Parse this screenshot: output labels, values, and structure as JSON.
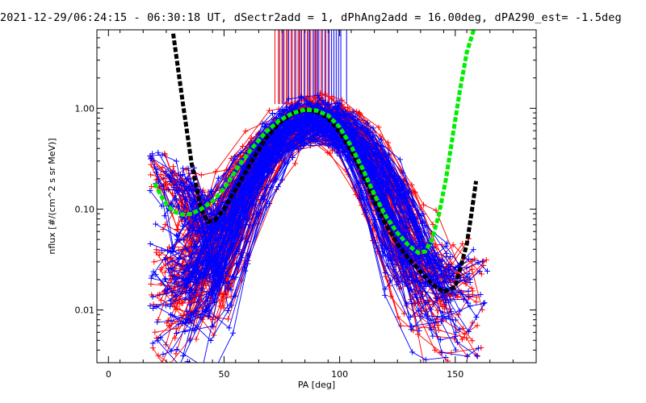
{
  "chart_data": {
    "type": "line",
    "title": "2021-12-29/06:24:15 - 06:30:18 UT, dSectr2add = 1, dPhAng2add = 16.00deg, dPA290_est=  -1.5deg",
    "xlabel": "PA [deg]",
    "ylabel": "nflux [#/(cm^2 s sr MeV)]",
    "xlim": [
      -5,
      185
    ],
    "ylim": [
      0.003,
      6.0
    ],
    "yscale": "log",
    "grid": false,
    "x_ticks": [
      0,
      50,
      100,
      150
    ],
    "y_ticks": [
      0.01,
      0.1,
      1.0
    ],
    "x_tick_labels": [
      "0",
      "50",
      "100",
      "150"
    ],
    "y_tick_labels": [
      "0.01",
      "0.10",
      "1.00"
    ],
    "colors": {
      "red": "#ff0000",
      "blue": "#0000ff",
      "black": "#000000",
      "green": "#00ee00",
      "purple": "#8b0a50"
    },
    "series": [
      {
        "style": "thick-dashed",
        "color": "#000000",
        "x": [
          28,
          32,
          36,
          40,
          43,
          46,
          50,
          56,
          62,
          68,
          74,
          80,
          85,
          90,
          95,
          100,
          105,
          110,
          115,
          120,
          125,
          130,
          135,
          140,
          145,
          150,
          152,
          155,
          157,
          159
        ],
        "y": [
          5.5,
          1.2,
          0.28,
          0.1,
          0.075,
          0.078,
          0.1,
          0.17,
          0.3,
          0.5,
          0.72,
          0.9,
          0.96,
          0.93,
          0.8,
          0.58,
          0.38,
          0.22,
          0.12,
          0.07,
          0.045,
          0.032,
          0.024,
          0.018,
          0.015,
          0.017,
          0.025,
          0.045,
          0.09,
          0.19
        ]
      },
      {
        "style": "thick-dashed",
        "color": "#00ee00",
        "x": [
          20,
          24,
          28,
          32,
          36,
          40,
          45,
          50,
          56,
          62,
          68,
          74,
          80,
          85,
          90,
          95,
          100,
          105,
          110,
          115,
          120,
          125,
          130,
          134,
          137,
          140,
          143,
          146,
          149,
          152,
          155,
          158
        ],
        "y": [
          0.18,
          0.12,
          0.095,
          0.088,
          0.09,
          0.1,
          0.12,
          0.16,
          0.26,
          0.4,
          0.58,
          0.76,
          0.9,
          0.97,
          0.95,
          0.85,
          0.65,
          0.42,
          0.25,
          0.14,
          0.085,
          0.058,
          0.043,
          0.037,
          0.038,
          0.05,
          0.09,
          0.2,
          0.55,
          1.5,
          3.6,
          6.0
        ]
      }
    ],
    "scatter_series": [
      {
        "color": "#ff0000",
        "marker": "+",
        "connected": true,
        "description_note": ""
      },
      {
        "color": "#0000ff",
        "marker": "+",
        "connected": true,
        "description_note": ""
      }
    ],
    "vertical_markers": {
      "ymin": 1.1,
      "ymax": 6.0,
      "x_red": [
        72,
        73.5,
        75,
        76,
        77.5,
        79,
        80.5,
        82,
        83,
        84.5,
        86,
        87.5,
        89,
        90.5,
        92,
        93.5,
        95
      ],
      "x_blue": [
        75.5,
        78,
        81,
        83.5,
        85,
        87,
        88.5,
        90,
        91,
        92.5,
        94,
        95.5,
        96.5,
        97.5,
        98.5,
        99.5,
        100.5,
        103
      ],
      "x_purple": [
        74,
        77,
        79.5,
        82.5,
        86.5,
        89.5
      ]
    }
  }
}
